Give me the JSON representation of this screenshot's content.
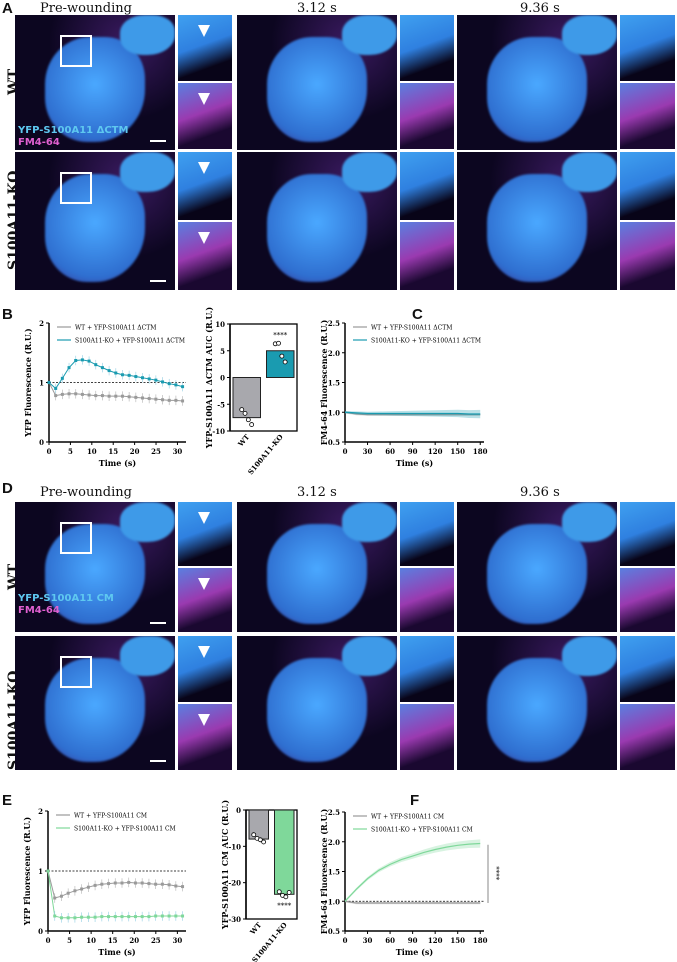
{
  "panels": {
    "A": "A",
    "B": "B",
    "C": "C",
    "D": "D",
    "E": "E",
    "F": "F"
  },
  "panel_A": {
    "columns": [
      "Pre-wounding",
      "3.12 s",
      "9.36 s"
    ],
    "rows": [
      "WT",
      "S100A11-KO"
    ],
    "channel_yfp": "YFP-S100A11 ΔCTM",
    "channel_fm": "FM4-64"
  },
  "panel_D": {
    "columns": [
      "Pre-wounding",
      "3.12 s",
      "9.36 s"
    ],
    "rows": [
      "WT",
      "S100A11-KO"
    ],
    "channel_yfp": "YFP-S100A11 CM",
    "channel_fm": "FM4-64"
  },
  "colors": {
    "wt": "#9a9a9a",
    "ko_ctm": "#1a9bb0",
    "ko_cm": "#7fd89a",
    "bar_wt": "#a8a8ad"
  },
  "chart_data": [
    {
      "id": "B_line",
      "type": "line",
      "xlabel": "Time (s)",
      "ylabel": "YFP Fluorescence (R.U.)",
      "xlim": [
        0,
        32
      ],
      "ylim": [
        0,
        2
      ],
      "xticks": [
        0,
        5,
        10,
        15,
        20,
        25,
        30
      ],
      "yticks": [
        0,
        1,
        2
      ],
      "reference_line": 1,
      "x": [
        0,
        1.56,
        3.12,
        4.68,
        6.24,
        7.8,
        9.36,
        10.92,
        12.48,
        14.04,
        15.6,
        17.16,
        18.72,
        20.28,
        21.84,
        23.4,
        24.96,
        26.52,
        28.08,
        29.64,
        31.2
      ],
      "series": [
        {
          "name": "WT + YFP-S100A11 ΔCTM",
          "values": [
            1,
            0.78,
            0.8,
            0.81,
            0.81,
            0.8,
            0.79,
            0.78,
            0.78,
            0.77,
            0.77,
            0.77,
            0.76,
            0.75,
            0.74,
            0.73,
            0.72,
            0.71,
            0.7,
            0.7,
            0.69
          ]
        },
        {
          "name": "S100A11-KO + YFP-S100A11 ΔCTM",
          "values": [
            1,
            0.9,
            1.07,
            1.25,
            1.37,
            1.38,
            1.36,
            1.3,
            1.25,
            1.2,
            1.16,
            1.13,
            1.12,
            1.1,
            1.08,
            1.06,
            1.04,
            1.01,
            0.98,
            0.96,
            0.93
          ]
        }
      ]
    },
    {
      "id": "B_bar",
      "type": "bar",
      "ylabel": "YFP-S100A11 ΔCTM AUC (R.U.)",
      "ylim": [
        -10,
        10
      ],
      "yticks": [
        -10,
        -5,
        0,
        5,
        10
      ],
      "categories": [
        "WT",
        "S100A11-KO"
      ],
      "values": [
        -7.5,
        5
      ],
      "points": [
        [
          -6,
          -6.7,
          -7.9,
          -8.8
        ],
        [
          6.3,
          6.4,
          4,
          2.9
        ]
      ],
      "annotation": "****"
    },
    {
      "id": "C_line",
      "type": "line",
      "xlabel": "Time (s)",
      "ylabel": "FM4-64 Fluorescence (R.U.)",
      "xlim": [
        0,
        185
      ],
      "ylim": [
        0.5,
        2.5
      ],
      "xticks": [
        0,
        30,
        60,
        90,
        120,
        150,
        180
      ],
      "yticks": [
        0.5,
        1.0,
        1.5,
        2.0,
        2.5
      ],
      "x": [
        0,
        15,
        30,
        45,
        60,
        75,
        90,
        105,
        120,
        135,
        150,
        165,
        180
      ],
      "series": [
        {
          "name": "WT + YFP-S100A11 ΔCTM",
          "values": [
            1.0,
            0.97,
            0.96,
            0.96,
            0.96,
            0.96,
            0.96,
            0.96,
            0.96,
            0.96,
            0.96,
            0.96,
            0.96
          ]
        },
        {
          "name": "S100A11-KO + YFP-S100A11 ΔCTM",
          "values": [
            1.0,
            0.99,
            0.98,
            0.98,
            0.98,
            0.98,
            0.98,
            0.98,
            0.98,
            0.98,
            0.98,
            0.97,
            0.97
          ]
        }
      ]
    },
    {
      "id": "E_line",
      "type": "line",
      "xlabel": "Time (s)",
      "ylabel": "YFP Fluorescence (R.U.)",
      "xlim": [
        0,
        32
      ],
      "ylim": [
        0,
        2
      ],
      "xticks": [
        0,
        5,
        10,
        15,
        20,
        25,
        30
      ],
      "yticks": [
        0,
        1,
        2
      ],
      "reference_line": 1,
      "x": [
        0,
        1.56,
        3.12,
        4.68,
        6.24,
        7.8,
        9.36,
        10.92,
        12.48,
        14.04,
        15.6,
        17.16,
        18.72,
        20.28,
        21.84,
        23.4,
        24.96,
        26.52,
        28.08,
        29.64,
        31.2
      ],
      "series": [
        {
          "name": "WT + YFP-S100A11 CM",
          "values": [
            1,
            0.55,
            0.58,
            0.63,
            0.67,
            0.7,
            0.73,
            0.76,
            0.78,
            0.79,
            0.8,
            0.8,
            0.81,
            0.8,
            0.8,
            0.79,
            0.78,
            0.78,
            0.77,
            0.75,
            0.74
          ]
        },
        {
          "name": "S100A11-KO + YFP-S100A11 CM",
          "values": [
            1,
            0.25,
            0.22,
            0.22,
            0.22,
            0.23,
            0.23,
            0.23,
            0.24,
            0.24,
            0.24,
            0.24,
            0.24,
            0.24,
            0.24,
            0.24,
            0.25,
            0.25,
            0.25,
            0.25,
            0.25
          ]
        }
      ]
    },
    {
      "id": "E_bar",
      "type": "bar",
      "ylabel": "YFP-S100A11 CM AUC (R.U.)",
      "ylim": [
        -30,
        0
      ],
      "yticks": [
        -30,
        -20,
        -10,
        0
      ],
      "categories": [
        "WT",
        "S100A11-KO"
      ],
      "values": [
        -8,
        -23.2
      ],
      "points": [
        [
          -6.8,
          -7.8,
          -8.2,
          -8.8
        ],
        [
          -22.5,
          -23.5,
          -23.9,
          -22.7
        ]
      ],
      "annotation": "****"
    },
    {
      "id": "F_line",
      "type": "line",
      "xlabel": "Time (s)",
      "ylabel": "FM4-64 Fluorescence (R.U.)",
      "xlim": [
        0,
        185
      ],
      "ylim": [
        0.5,
        2.5
      ],
      "xticks": [
        0,
        30,
        60,
        90,
        120,
        150,
        180
      ],
      "yticks": [
        0.5,
        1.0,
        1.5,
        2.0,
        2.5
      ],
      "reference_line": 1,
      "annotation": "****",
      "x": [
        0,
        15,
        30,
        45,
        60,
        75,
        90,
        105,
        120,
        135,
        150,
        165,
        180
      ],
      "series": [
        {
          "name": "WT + YFP-S100A11 CM",
          "values": [
            1.0,
            0.97,
            0.97,
            0.97,
            0.97,
            0.97,
            0.97,
            0.97,
            0.97,
            0.97,
            0.97,
            0.97,
            0.97
          ]
        },
        {
          "name": "S100A11-KO + YFP-S100A11 CM",
          "values": [
            1.0,
            1.2,
            1.38,
            1.52,
            1.62,
            1.7,
            1.76,
            1.82,
            1.87,
            1.91,
            1.94,
            1.96,
            1.97
          ]
        }
      ]
    }
  ]
}
